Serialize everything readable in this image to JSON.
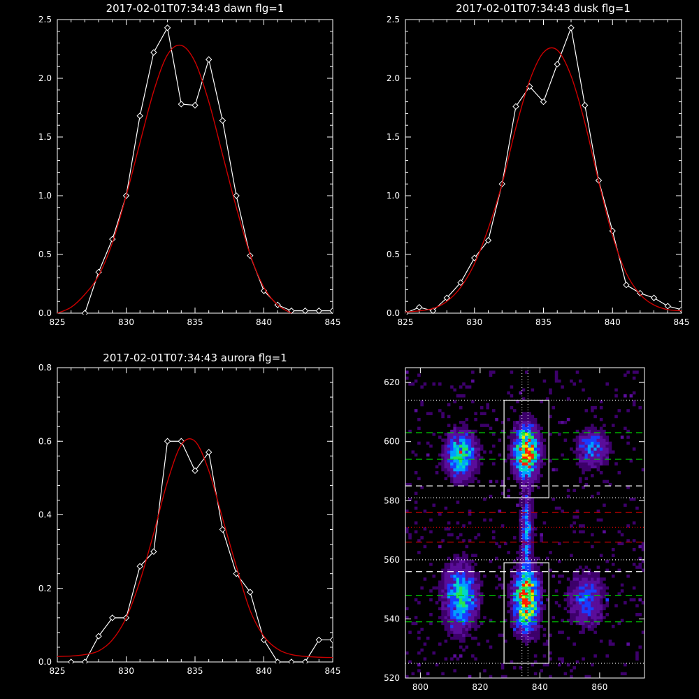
{
  "chart_data": [
    {
      "type": "line",
      "title": "2017-02-01T07:34:43 dawn flg=1",
      "xlim": [
        825,
        845
      ],
      "ylim": [
        0,
        2.5
      ],
      "xticks": [
        825,
        830,
        835,
        840,
        845
      ],
      "yticks": [
        0.0,
        0.5,
        1.0,
        1.5,
        2.0,
        2.5
      ],
      "series": [
        {
          "style": "data-diamonds",
          "color": "#ffffff",
          "x": [
            827,
            828,
            829,
            830,
            831,
            832,
            833,
            834,
            835,
            836,
            837,
            838,
            839,
            840,
            841,
            842,
            843,
            844,
            845
          ],
          "y": [
            0.0,
            0.35,
            0.63,
            1.0,
            1.68,
            2.22,
            2.43,
            1.78,
            1.77,
            2.16,
            1.64,
            1.0,
            0.49,
            0.19,
            0.07,
            0.02,
            0.02,
            0.02,
            0.02
          ]
        },
        {
          "style": "fit",
          "color": "#cc0000",
          "x": [
            825,
            826,
            827,
            828,
            829,
            830,
            831,
            832,
            833,
            834,
            835,
            836,
            837,
            838,
            839,
            840,
            841,
            842
          ],
          "y": [
            0.0,
            0.05,
            0.16,
            0.32,
            0.6,
            1.0,
            1.45,
            1.89,
            2.2,
            2.28,
            2.14,
            1.8,
            1.35,
            0.9,
            0.5,
            0.22,
            0.07,
            0.0
          ]
        }
      ]
    },
    {
      "type": "line",
      "title": "2017-02-01T07:34:43 dusk flg=1",
      "xlim": [
        825,
        845
      ],
      "ylim": [
        0,
        2.5
      ],
      "xticks": [
        825,
        830,
        835,
        840,
        845
      ],
      "yticks": [
        0.0,
        0.5,
        1.0,
        1.5,
        2.0,
        2.5
      ],
      "series": [
        {
          "style": "data-diamonds",
          "color": "#ffffff",
          "x": [
            825,
            826,
            827,
            828,
            829,
            830,
            831,
            832,
            833,
            834,
            835,
            836,
            837,
            838,
            839,
            840,
            841,
            842,
            843,
            844,
            845
          ],
          "y": [
            0.0,
            0.05,
            0.02,
            0.13,
            0.26,
            0.47,
            0.62,
            1.1,
            1.76,
            1.93,
            1.8,
            2.12,
            2.43,
            1.77,
            1.13,
            0.7,
            0.24,
            0.17,
            0.13,
            0.06,
            0.03
          ]
        },
        {
          "style": "fit",
          "color": "#cc0000",
          "x": [
            825,
            826,
            827,
            828,
            829,
            830,
            831,
            832,
            833,
            834,
            835,
            836,
            837,
            838,
            839,
            840,
            841,
            842,
            843,
            844,
            845
          ],
          "y": [
            0.01,
            0.02,
            0.04,
            0.1,
            0.22,
            0.42,
            0.72,
            1.1,
            1.58,
            1.98,
            2.22,
            2.24,
            2.02,
            1.62,
            1.12,
            0.66,
            0.34,
            0.16,
            0.07,
            0.03,
            0.02
          ]
        }
      ]
    },
    {
      "type": "line",
      "title": "2017-02-01T07:34:43 aurora flg=1",
      "xlim": [
        825,
        845
      ],
      "ylim": [
        0,
        0.8
      ],
      "xticks": [
        825,
        830,
        835,
        840,
        845
      ],
      "yticks": [
        0.0,
        0.2,
        0.4,
        0.6,
        0.8
      ],
      "series": [
        {
          "style": "data-diamonds",
          "color": "#ffffff",
          "x": [
            826,
            827,
            828,
            829,
            830,
            831,
            832,
            833,
            834,
            835,
            836,
            837,
            838,
            839,
            840,
            841,
            842,
            843,
            844,
            845
          ],
          "y": [
            0.0,
            0.0,
            0.07,
            0.12,
            0.12,
            0.26,
            0.3,
            0.6,
            0.6,
            0.52,
            0.57,
            0.36,
            0.24,
            0.19,
            0.06,
            0.0,
            0.0,
            0.0,
            0.06,
            0.06
          ]
        },
        {
          "style": "fit",
          "color": "#cc0000",
          "x": [
            825,
            826,
            827,
            828,
            829,
            830,
            831,
            832,
            833,
            834,
            835,
            836,
            837,
            838,
            839,
            840,
            841,
            842,
            843,
            844,
            845
          ],
          "y": [
            0.015,
            0.016,
            0.02,
            0.03,
            0.06,
            0.12,
            0.22,
            0.35,
            0.49,
            0.59,
            0.6,
            0.52,
            0.39,
            0.26,
            0.14,
            0.07,
            0.035,
            0.02,
            0.015,
            0.013,
            0.012
          ]
        }
      ]
    },
    {
      "type": "heatmap",
      "title": "",
      "xlim": [
        795,
        875
      ],
      "ylim": [
        520,
        625
      ],
      "xticks": [
        800,
        820,
        840,
        860
      ],
      "yticks": [
        520,
        540,
        560,
        580,
        600,
        620
      ],
      "colormap": [
        "#3d006b",
        "#5a0d9a",
        "#1a3cff",
        "#00a0ff",
        "#00d7c8",
        "#28e650",
        "#e6e600",
        "#ff2000"
      ],
      "blobs": [
        {
          "x": 835,
          "y": 596,
          "sx": 2.6,
          "sy": 5.5,
          "amp": 1.0
        },
        {
          "x": 835,
          "y": 546,
          "sx": 2.6,
          "sy": 6.5,
          "amp": 0.95
        },
        {
          "x": 813,
          "y": 595,
          "sx": 3.2,
          "sy": 5.0,
          "amp": 0.62
        },
        {
          "x": 813,
          "y": 547,
          "sx": 3.5,
          "sy": 7.0,
          "amp": 0.55
        },
        {
          "x": 857,
          "y": 597,
          "sx": 3.5,
          "sy": 4.0,
          "amp": 0.35
        },
        {
          "x": 855,
          "y": 546,
          "sx": 4.0,
          "sy": 6.0,
          "amp": 0.3
        },
        {
          "x": 835,
          "y": 570,
          "sx": 1.2,
          "sy": 8.0,
          "amp": 0.4
        }
      ],
      "boxes": [
        {
          "x0": 828,
          "x1": 843,
          "y0": 581,
          "y1": 614
        },
        {
          "x0": 828,
          "x1": 843,
          "y0": 525,
          "y1": 559
        }
      ],
      "vlines": [
        {
          "x": 834,
          "style": "dotted"
        },
        {
          "x": 836,
          "style": "dotted"
        }
      ],
      "hlines": [
        {
          "y": 614,
          "color": "#ffffff",
          "style": "dotted"
        },
        {
          "y": 603,
          "color": "#00cc00",
          "style": "dashed"
        },
        {
          "y": 594,
          "color": "#00cc00",
          "style": "dashed"
        },
        {
          "y": 585,
          "color": "#ffffff",
          "style": "dashed"
        },
        {
          "y": 581,
          "color": "#ffffff",
          "style": "dotted"
        },
        {
          "y": 576,
          "color": "#cc0000",
          "style": "dashed"
        },
        {
          "y": 571,
          "color": "#cc0000",
          "style": "dotted"
        },
        {
          "y": 566,
          "color": "#cc0000",
          "style": "dashed"
        },
        {
          "y": 560,
          "color": "#ffffff",
          "style": "dotted"
        },
        {
          "y": 556,
          "color": "#ffffff",
          "style": "dashed"
        },
        {
          "y": 548,
          "color": "#00cc00",
          "style": "dashed"
        },
        {
          "y": 539,
          "color": "#00cc00",
          "style": "dashed"
        },
        {
          "y": 525,
          "color": "#ffffff",
          "style": "dotted"
        }
      ]
    }
  ]
}
